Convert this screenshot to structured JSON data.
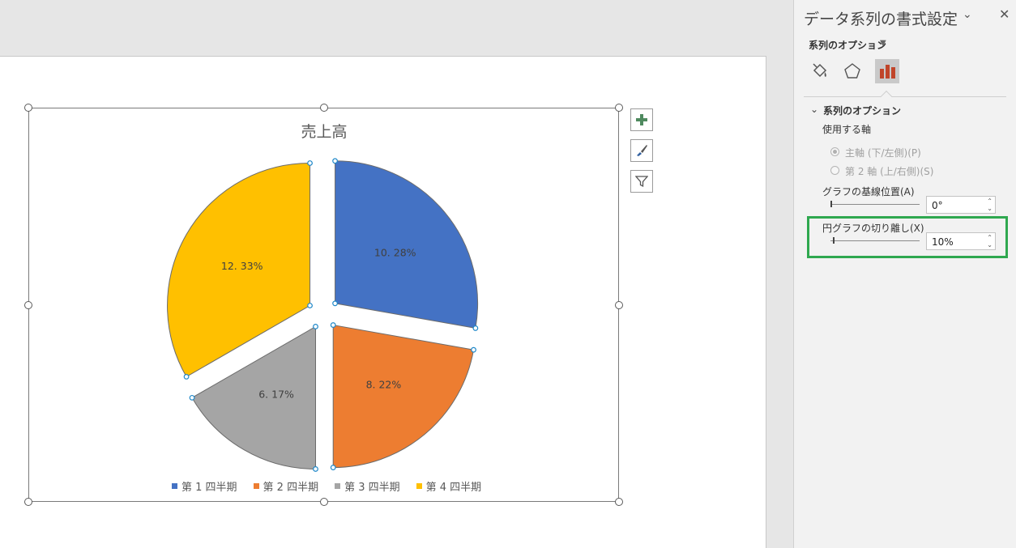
{
  "chart_data": {
    "type": "pie",
    "title": "売上高",
    "categories": [
      "第 1 四半期",
      "第 2 四半期",
      "第 3 四半期",
      "第 4 四半期"
    ],
    "values": [
      10.28,
      8.22,
      6.17,
      12.33
    ],
    "data_labels": [
      "10. 28%",
      "8. 22%",
      "6. 17%",
      "12. 33%"
    ],
    "colors": [
      "#4472c4",
      "#ed7d31",
      "#a5a5a5",
      "#ffc000"
    ],
    "explosion_percent": 10,
    "legend_position": "bottom"
  },
  "pane": {
    "title": "データ系列の書式設定",
    "subtitle": "系列のオプション",
    "section_title": "系列のオプション",
    "axis_label": "使用する軸",
    "radio_primary": "主軸 (下/左側)(P)",
    "radio_secondary": "第 2 軸 (上/右側)(S)",
    "angle_label": "グラフの基線位置(A)",
    "angle_value": "0°",
    "explosion_label": "円グラフの切り離し(X)",
    "explosion_value": "10%",
    "icons": [
      "fill-line-icon",
      "effects-pentagon-icon",
      "series-options-icon"
    ]
  },
  "chart_side_buttons": [
    "chart-elements-plus-icon",
    "chart-styles-brush-icon",
    "chart-filter-icon"
  ]
}
